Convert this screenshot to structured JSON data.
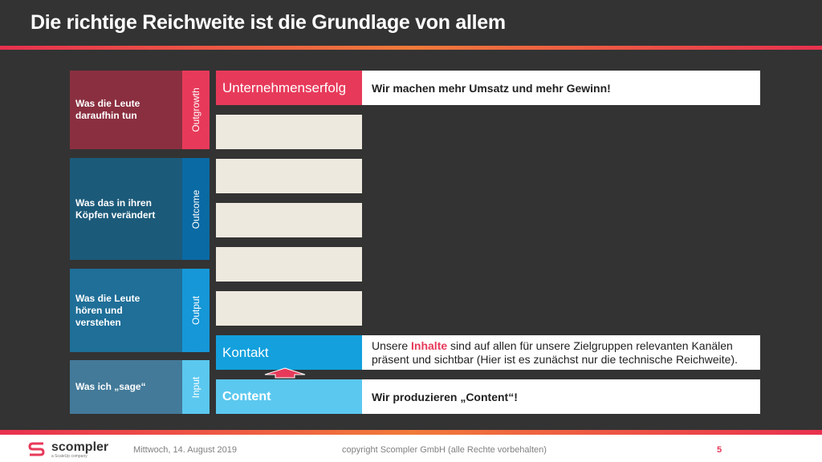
{
  "title": "Die richtige Reichweite ist die Grundlage von allem",
  "left_blocks": [
    {
      "text": "Was die Leute daraufhin tun",
      "color": "#8a2f40"
    },
    {
      "text": "Was das in ihren Köpfen verändert",
      "color": "#1c5a7a"
    },
    {
      "text": "Was die Leute hören und verstehen",
      "color": "#1f6f98"
    },
    {
      "text": "Was ich „sage“",
      "color": "#437a99"
    }
  ],
  "vertical_labels": [
    {
      "text": "Outgrowth",
      "color": "#e73a5a"
    },
    {
      "text": "Outcome",
      "color": "#0a6aa4"
    },
    {
      "text": "Output",
      "color": "#1597d8"
    },
    {
      "text": "Input",
      "color": "#5bc8ef"
    }
  ],
  "rows": {
    "unternehmenserfolg": {
      "label": "Unternehmenserfolg",
      "text": "Wir machen mehr Umsatz und mehr Gewinn!",
      "color": "#e73a5a"
    },
    "kontakt": {
      "label": "Kontakt",
      "text_before": "Unsere ",
      "highlight": "Inhalte",
      "text_after": " sind auf allen für unsere Zielgruppen relevanten Kanälen präsent und sichtbar (Hier ist es zunächst nur die technische Reichweite).",
      "color": "#13a0dd",
      "highlight_color": "#e73a5a"
    },
    "content": {
      "label": "Content",
      "text": "Wir produzieren „Content“!",
      "color": "#5bc8ef"
    }
  },
  "footer": {
    "brand": "scompler",
    "brand_sub": "a ScaleUp company",
    "date": "Mittwoch, 14. August 2019",
    "copyright": "copyright Scompler GmbH (alle Rechte vorbehalten)",
    "page": "5"
  }
}
